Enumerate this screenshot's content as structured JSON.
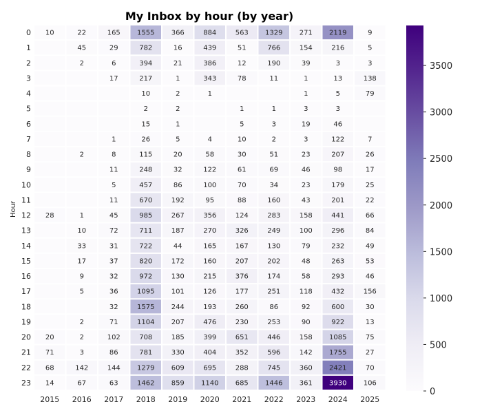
{
  "chart_data": {
    "type": "heatmap",
    "title": "My Inbox by hour (by year)",
    "xlabel": "",
    "ylabel": "Hour",
    "x": [
      "2015",
      "2016",
      "2017",
      "2018",
      "2019",
      "2020",
      "2021",
      "2022",
      "2023",
      "2024",
      "2025"
    ],
    "y": [
      "0",
      "1",
      "2",
      "3",
      "4",
      "5",
      "6",
      "7",
      "8",
      "9",
      "10",
      "11",
      "12",
      "13",
      "14",
      "15",
      "16",
      "17",
      "18",
      "19",
      "20",
      "21",
      "22",
      "23"
    ],
    "values": [
      [
        10,
        22,
        165,
        1555,
        366,
        884,
        563,
        1329,
        271,
        2119,
        9
      ],
      [
        null,
        45,
        29,
        782,
        16,
        439,
        51,
        766,
        154,
        216,
        5
      ],
      [
        null,
        2,
        6,
        394,
        21,
        386,
        12,
        190,
        39,
        3,
        3
      ],
      [
        null,
        null,
        17,
        217,
        1,
        343,
        78,
        11,
        1,
        13,
        138
      ],
      [
        null,
        null,
        null,
        10,
        2,
        1,
        null,
        null,
        1,
        5,
        79
      ],
      [
        null,
        null,
        null,
        2,
        2,
        null,
        1,
        1,
        3,
        3,
        null
      ],
      [
        null,
        null,
        null,
        15,
        1,
        null,
        5,
        3,
        19,
        46,
        null
      ],
      [
        null,
        null,
        1,
        26,
        5,
        4,
        10,
        2,
        3,
        122,
        7
      ],
      [
        null,
        2,
        8,
        115,
        20,
        58,
        30,
        51,
        23,
        207,
        26
      ],
      [
        null,
        null,
        11,
        248,
        32,
        122,
        61,
        69,
        46,
        98,
        17
      ],
      [
        null,
        null,
        5,
        457,
        86,
        100,
        70,
        34,
        23,
        179,
        25
      ],
      [
        null,
        null,
        11,
        670,
        192,
        95,
        88,
        160,
        43,
        201,
        22
      ],
      [
        28,
        1,
        45,
        985,
        267,
        356,
        124,
        283,
        158,
        441,
        66
      ],
      [
        null,
        10,
        72,
        711,
        187,
        270,
        326,
        249,
        100,
        296,
        84
      ],
      [
        null,
        33,
        31,
        722,
        44,
        165,
        167,
        130,
        79,
        232,
        49
      ],
      [
        null,
        17,
        37,
        820,
        172,
        160,
        207,
        202,
        48,
        263,
        53
      ],
      [
        null,
        9,
        32,
        972,
        130,
        215,
        376,
        174,
        58,
        293,
        46
      ],
      [
        null,
        5,
        36,
        1095,
        101,
        126,
        177,
        251,
        118,
        432,
        156
      ],
      [
        null,
        null,
        32,
        1575,
        244,
        193,
        260,
        86,
        92,
        600,
        30
      ],
      [
        null,
        2,
        71,
        1104,
        207,
        476,
        230,
        253,
        90,
        922,
        13
      ],
      [
        20,
        2,
        102,
        708,
        185,
        399,
        651,
        446,
        158,
        1085,
        75
      ],
      [
        71,
        3,
        86,
        781,
        330,
        404,
        352,
        596,
        142,
        1755,
        27
      ],
      [
        68,
        142,
        144,
        1279,
        609,
        695,
        288,
        745,
        360,
        2421,
        70
      ],
      [
        14,
        67,
        63,
        1462,
        859,
        1140,
        685,
        1446,
        361,
        3930,
        106
      ]
    ],
    "colorbar": {
      "colormap": "Purples",
      "min": 0,
      "max": 3930,
      "ticks": [
        "0",
        "500",
        "1000",
        "1500",
        "2000",
        "2500",
        "3000",
        "3500"
      ]
    },
    "grid": false
  }
}
